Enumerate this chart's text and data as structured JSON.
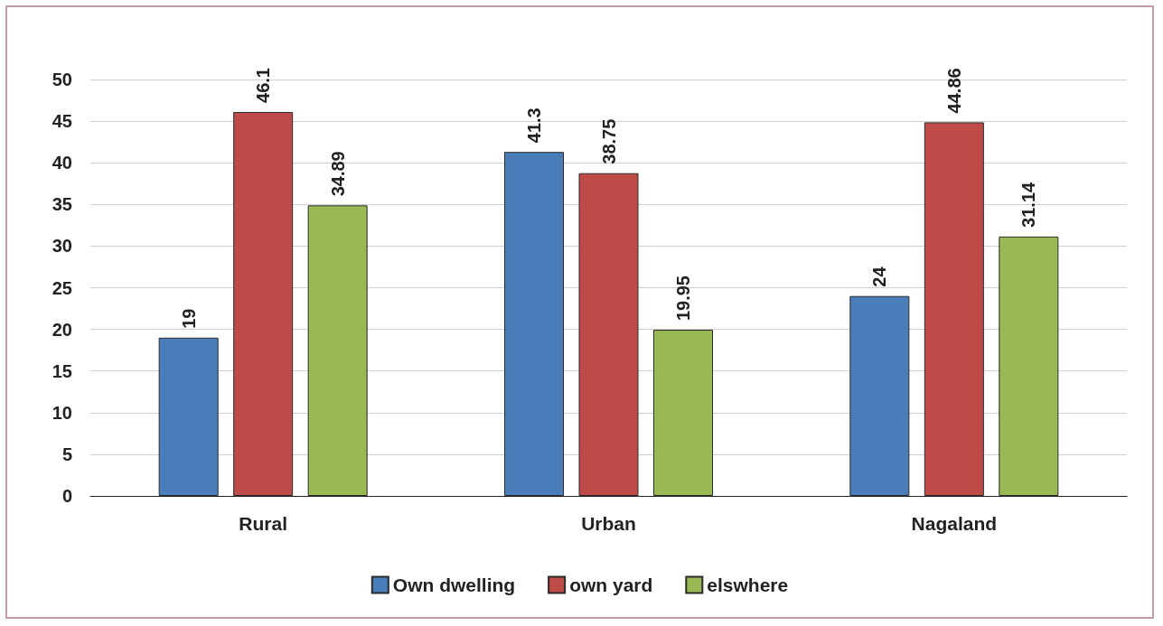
{
  "chart_data": {
    "type": "bar",
    "categories": [
      "Rural",
      "Urban",
      "Nagaland"
    ],
    "series": [
      {
        "name": "Own dwelling",
        "color": "#4a7ebb",
        "values": [
          19,
          41.3,
          24
        ]
      },
      {
        "name": "own yard",
        "color": "#be4b48",
        "values": [
          46.1,
          38.75,
          44.86
        ]
      },
      {
        "name": "elswhere",
        "color": "#98b954",
        "values": [
          34.89,
          19.95,
          31.14
        ]
      }
    ],
    "ylim": [
      0,
      50
    ],
    "yticks": [
      0,
      5,
      10,
      15,
      20,
      25,
      30,
      35,
      40,
      45,
      50
    ],
    "grid": "y",
    "legend": "bottom",
    "data_labels": true
  }
}
